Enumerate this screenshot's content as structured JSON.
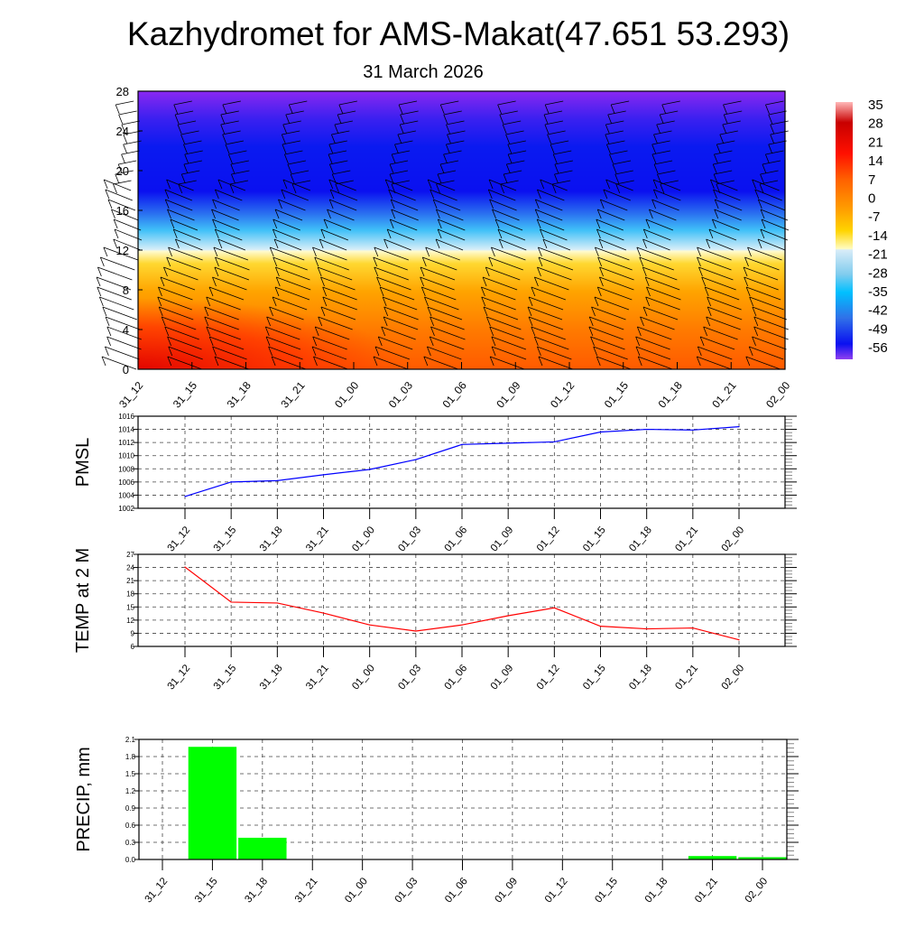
{
  "title": "Kazhydromet for AMS-Makat(47.651 53.293)",
  "subtitle": "31 March 2026",
  "colors": {
    "pmsl": "#0000ff",
    "temp": "#ff0000",
    "precip": "#00ff00"
  },
  "chart_data": [
    {
      "type": "heatmap",
      "title": "",
      "xlabel": "",
      "ylabel": "",
      "x_tick_labels": [
        "31_12",
        "31_15",
        "31_18",
        "31_21",
        "01_00",
        "01_03",
        "01_06",
        "01_09",
        "01_12",
        "01_15",
        "01_18",
        "01_21",
        "02_00"
      ],
      "y_ticks": [
        "0",
        "4",
        "8",
        "12",
        "16",
        "20",
        "24",
        "28"
      ],
      "ylim": [
        0,
        28
      ],
      "colorbar_labels": [
        "35",
        "28",
        "21",
        "14",
        "7",
        "0",
        "-7",
        "-14",
        "-21",
        "-28",
        "-35",
        "-42",
        "-49",
        "-56"
      ],
      "colorbar_range": [
        -60,
        38
      ],
      "overlay": "wind barbs"
    },
    {
      "type": "line",
      "ylabel": "PMSL",
      "x": [
        "31_12",
        "31_15",
        "31_18",
        "31_21",
        "01_00",
        "01_03",
        "01_06",
        "01_09",
        "01_12",
        "01_15",
        "01_18",
        "01_21",
        "02_00"
      ],
      "values": [
        1003.8,
        1006.0,
        1006.2,
        1007.1,
        1007.9,
        1009.4,
        1011.7,
        1011.9,
        1012.1,
        1013.6,
        1014.0,
        1013.9,
        1014.4
      ],
      "y_ticks": [
        "1002",
        "1004",
        "1006",
        "1008",
        "1010",
        "1012",
        "1014",
        "1016"
      ],
      "ylim": [
        1002,
        1016
      ],
      "grid": true
    },
    {
      "type": "line",
      "ylabel": "TEMP at 2 M",
      "x": [
        "31_12",
        "31_15",
        "31_18",
        "31_21",
        "01_00",
        "01_03",
        "01_06",
        "01_09",
        "01_12",
        "01_15",
        "01_18",
        "01_21",
        "02_00"
      ],
      "values": [
        24.1,
        16.1,
        15.9,
        13.6,
        10.9,
        9.5,
        10.9,
        13.0,
        14.8,
        10.6,
        10.0,
        10.2,
        7.5
      ],
      "y_ticks": [
        "6",
        "9",
        "12",
        "15",
        "18",
        "21",
        "24",
        "27"
      ],
      "ylim": [
        6,
        27
      ],
      "grid": true
    },
    {
      "type": "bar",
      "ylabel": "PRECIP, mm",
      "categories": [
        "31_12",
        "31_15",
        "31_18",
        "31_21",
        "01_00",
        "01_03",
        "01_06",
        "01_09",
        "01_12",
        "01_15",
        "01_18",
        "01_21",
        "02_00"
      ],
      "values": [
        0,
        1.97,
        0.38,
        0,
        0,
        0,
        0,
        0,
        0,
        0,
        0,
        0.06,
        0.04
      ],
      "y_ticks": [
        "0.0",
        "0.3",
        "0.6",
        "0.9",
        "1.2",
        "1.5",
        "1.8",
        "2.1"
      ],
      "ylim": [
        0,
        2.1
      ],
      "grid": true
    }
  ]
}
